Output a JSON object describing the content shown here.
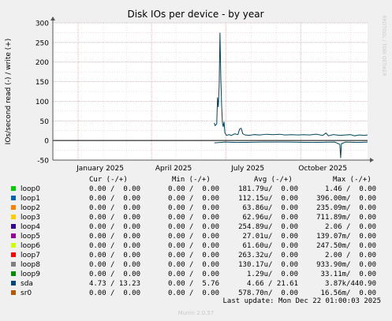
{
  "chart_data": {
    "type": "line",
    "title": "Disk IOs per device - by year",
    "ylabel": "IOs/second read (-) / write (+)",
    "watermark": "RRDTOOL / TOBI OETIKER",
    "ylim": [
      -50,
      300
    ],
    "yticks": [
      300,
      250,
      200,
      150,
      100,
      50,
      0,
      -50
    ],
    "xlim": [
      "2024-12-01",
      "2025-12-22"
    ],
    "xticks": [
      {
        "label": "January 2025",
        "date": "2025-01-01"
      },
      {
        "label": "April 2025",
        "date": "2025-04-01"
      },
      {
        "label": "July 2025",
        "date": "2025-07-01"
      },
      {
        "label": "October 2025",
        "date": "2025-10-01"
      }
    ],
    "grid": true,
    "series": [
      {
        "name": "sda",
        "direction": "write",
        "color": "#00455c",
        "points": [
          [
            "2025-06-17",
            45
          ],
          [
            "2025-06-18",
            38
          ],
          [
            "2025-06-20",
            42
          ],
          [
            "2025-06-21",
            110
          ],
          [
            "2025-06-22",
            85
          ],
          [
            "2025-06-23",
            140
          ],
          [
            "2025-06-24",
            275
          ],
          [
            "2025-06-25",
            160
          ],
          [
            "2025-06-26",
            90
          ],
          [
            "2025-06-27",
            45
          ],
          [
            "2025-06-28",
            35
          ],
          [
            "2025-06-29",
            48
          ],
          [
            "2025-06-30",
            20
          ],
          [
            "2025-07-02",
            13
          ],
          [
            "2025-07-05",
            15
          ],
          [
            "2025-07-08",
            13
          ],
          [
            "2025-07-12",
            17
          ],
          [
            "2025-07-16",
            15
          ],
          [
            "2025-07-18",
            29
          ],
          [
            "2025-07-20",
            31
          ],
          [
            "2025-07-22",
            17
          ],
          [
            "2025-07-25",
            14
          ],
          [
            "2025-07-30",
            13
          ],
          [
            "2025-08-05",
            15
          ],
          [
            "2025-08-12",
            14
          ],
          [
            "2025-08-20",
            16
          ],
          [
            "2025-08-28",
            15
          ],
          [
            "2025-09-05",
            16
          ],
          [
            "2025-09-12",
            14
          ],
          [
            "2025-09-20",
            15
          ],
          [
            "2025-09-28",
            14
          ],
          [
            "2025-10-05",
            15
          ],
          [
            "2025-10-12",
            14
          ],
          [
            "2025-10-20",
            16
          ],
          [
            "2025-10-28",
            13
          ],
          [
            "2025-11-01",
            19
          ],
          [
            "2025-11-04",
            12
          ],
          [
            "2025-11-10",
            15
          ],
          [
            "2025-11-18",
            13
          ],
          [
            "2025-11-25",
            14
          ],
          [
            "2025-12-01",
            15
          ],
          [
            "2025-12-06",
            12
          ],
          [
            "2025-12-12",
            14
          ],
          [
            "2025-12-18",
            13
          ],
          [
            "2025-12-22",
            14
          ]
        ]
      },
      {
        "name": "sda",
        "direction": "read",
        "color": "#00455c",
        "points": [
          [
            "2025-06-17",
            -6
          ],
          [
            "2025-06-24",
            -5
          ],
          [
            "2025-06-30",
            -4
          ],
          [
            "2025-07-15",
            -5
          ],
          [
            "2025-08-15",
            -4
          ],
          [
            "2025-09-15",
            -4
          ],
          [
            "2025-10-15",
            -5
          ],
          [
            "2025-11-12",
            -4
          ],
          [
            "2025-11-18",
            -10
          ],
          [
            "2025-11-19",
            -45
          ],
          [
            "2025-11-20",
            -8
          ],
          [
            "2025-11-25",
            -4
          ],
          [
            "2025-12-10",
            -5
          ],
          [
            "2025-12-22",
            -4
          ]
        ]
      }
    ]
  },
  "legend": {
    "headers": {
      "cur": "Cur (-/+)",
      "min": "Min (-/+)",
      "avg": "Avg (-/+)",
      "max": "Max (-/+)"
    },
    "rows": [
      {
        "name": "loop0",
        "color": "#00cc00",
        "cur": "0.00 /  0.00",
        "min": "0.00 /  0.00",
        "avg": "181.79u/  0.00",
        "max": "1.46 /  0.00"
      },
      {
        "name": "loop1",
        "color": "#0066b3",
        "cur": "0.00 /  0.00",
        "min": "0.00 /  0.00",
        "avg": "112.15u/  0.00",
        "max": "396.00m/  0.00"
      },
      {
        "name": "loop2",
        "color": "#ff8000",
        "cur": "0.00 /  0.00",
        "min": "0.00 /  0.00",
        "avg": "63.86u/  0.00",
        "max": "235.09m/  0.00"
      },
      {
        "name": "loop3",
        "color": "#ffcc00",
        "cur": "0.00 /  0.00",
        "min": "0.00 /  0.00",
        "avg": "62.96u/  0.00",
        "max": "711.89m/  0.00"
      },
      {
        "name": "loop4",
        "color": "#330099",
        "cur": "0.00 /  0.00",
        "min": "0.00 /  0.00",
        "avg": "254.89u/  0.00",
        "max": "2.06 /  0.00"
      },
      {
        "name": "loop5",
        "color": "#990099",
        "cur": "0.00 /  0.00",
        "min": "0.00 /  0.00",
        "avg": "27.01u/  0.00",
        "max": "139.07m/  0.00"
      },
      {
        "name": "loop6",
        "color": "#ccff00",
        "cur": "0.00 /  0.00",
        "min": "0.00 /  0.00",
        "avg": "61.60u/  0.00",
        "max": "247.50m/  0.00"
      },
      {
        "name": "loop7",
        "color": "#ff0000",
        "cur": "0.00 /  0.00",
        "min": "0.00 /  0.00",
        "avg": "263.32u/  0.00",
        "max": "2.00 /  0.00"
      },
      {
        "name": "loop8",
        "color": "#808080",
        "cur": "0.00 /  0.00",
        "min": "0.00 /  0.00",
        "avg": "130.17u/  0.00",
        "max": "933.90m/  0.00"
      },
      {
        "name": "loop9",
        "color": "#008f00",
        "cur": "0.00 /  0.00",
        "min": "0.00 /  0.00",
        "avg": "1.29u/  0.00",
        "max": "33.11m/  0.00"
      },
      {
        "name": "sda",
        "color": "#00487d",
        "cur": "4.73 / 13.23",
        "min": "0.00 /  5.76",
        "avg": "4.66 / 21.61",
        "max": "3.87k/440.90"
      },
      {
        "name": "sr0",
        "color": "#b35a00",
        "cur": "0.00 /  0.00",
        "min": "0.00 /  0.00",
        "avg": "578.70n/  0.00",
        "max": "16.56m/  0.00"
      }
    ]
  },
  "footer": {
    "last_update": "Last update: Mon Dec 22 01:00:03 2025",
    "munin_version": "Munin 2.0.57"
  }
}
